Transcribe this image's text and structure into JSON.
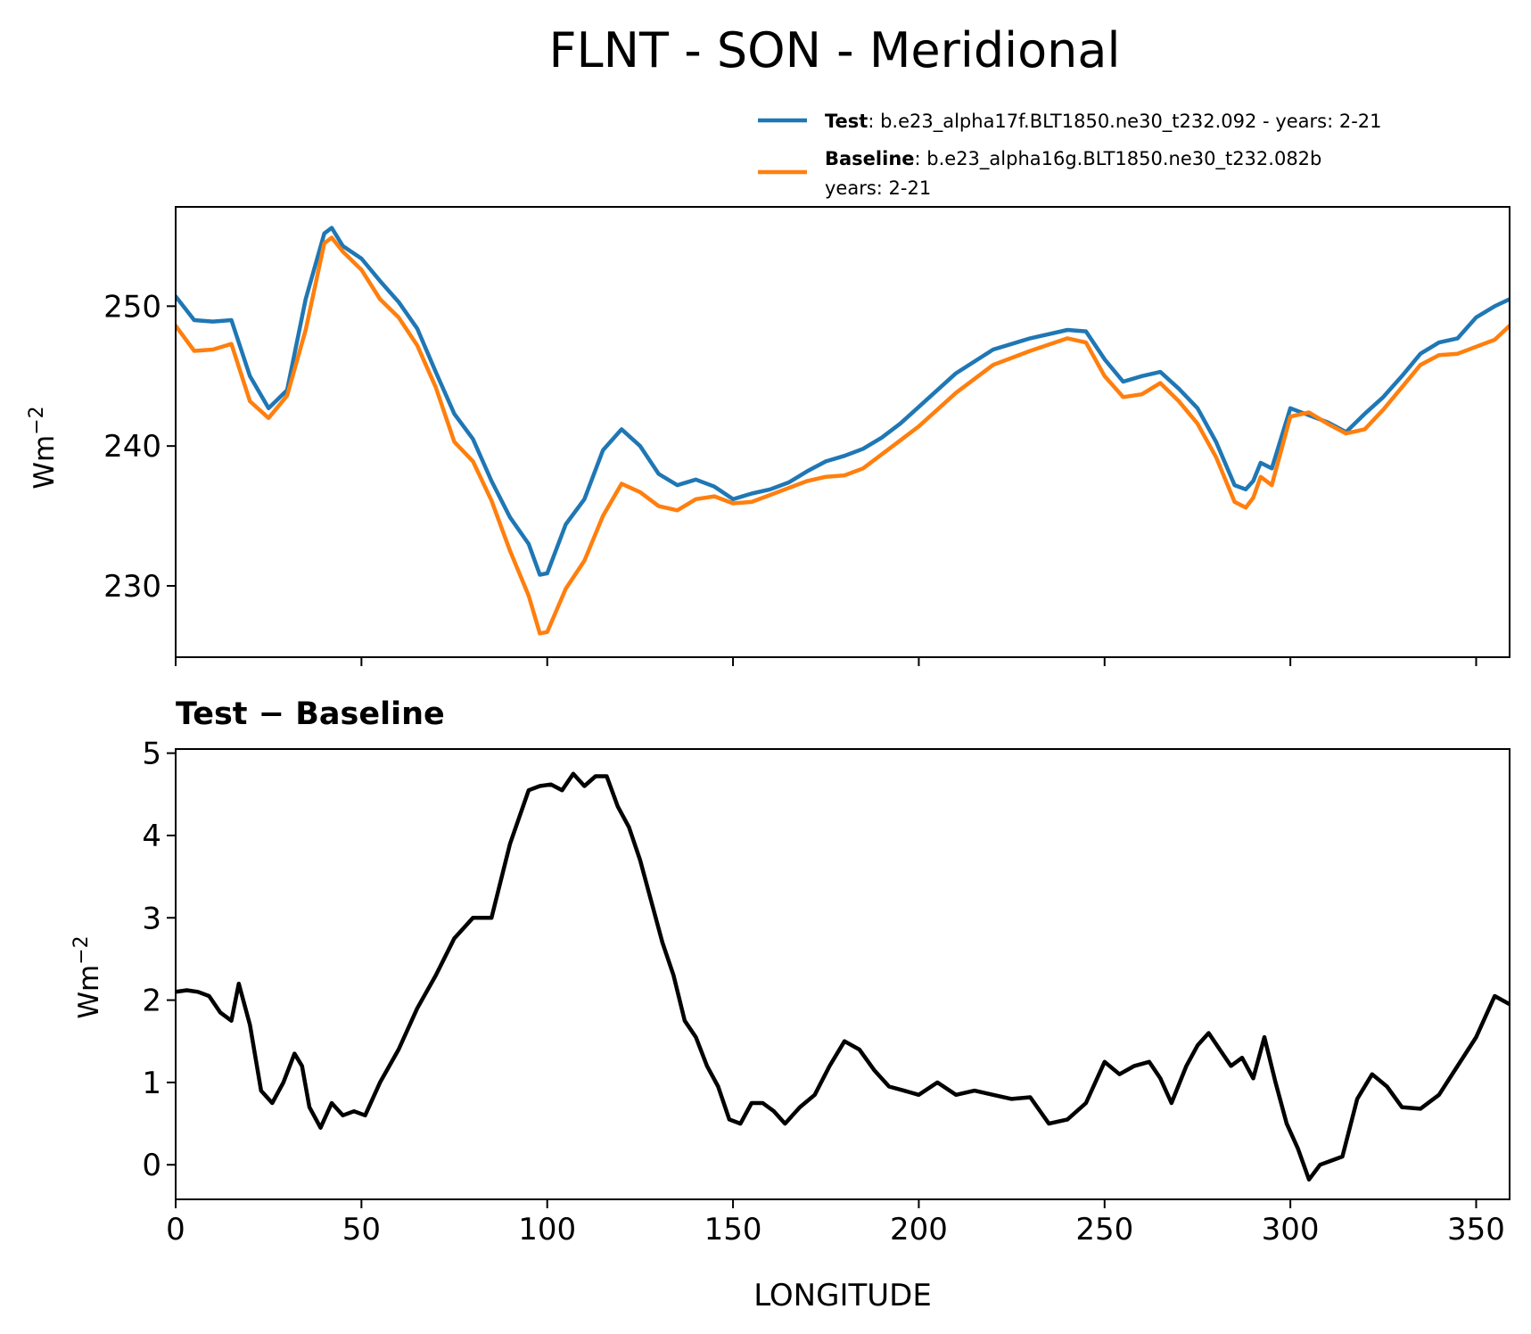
{
  "title": "FLNT - SON - Meridional",
  "colors": {
    "test": "#1f77b4",
    "baseline": "#ff7f0e",
    "diff": "#000000"
  },
  "legend": {
    "test_label": "Test",
    "test_text": ": b.e23_alpha17f.BLT1850.ne30_t232.092 - years: 2-21",
    "baseline_label": "Baseline",
    "baseline_text": ": b.e23_alpha16g.BLT1850.ne30_t232.082b",
    "baseline_text2": "years: 2-21"
  },
  "chart_data": [
    {
      "type": "line",
      "title": "",
      "xlabel": "",
      "ylabel": "Wm",
      "ylabel_sup": "−2",
      "xlim": [
        0,
        359
      ],
      "ylim": [
        224.9,
        257.1
      ],
      "xticks": [
        0,
        50,
        100,
        150,
        200,
        250,
        300,
        350
      ],
      "yticks": [
        230,
        240,
        250
      ],
      "x": [
        0,
        5,
        10,
        15,
        20,
        25,
        30,
        35,
        40,
        42,
        45,
        50,
        55,
        60,
        65,
        70,
        75,
        80,
        85,
        90,
        95,
        98,
        100,
        105,
        110,
        115,
        120,
        125,
        130,
        135,
        140,
        145,
        150,
        155,
        160,
        165,
        170,
        175,
        180,
        185,
        190,
        195,
        200,
        210,
        220,
        230,
        240,
        245,
        250,
        255,
        260,
        265,
        270,
        275,
        280,
        285,
        288,
        290,
        292,
        295,
        300,
        305,
        310,
        315,
        320,
        325,
        330,
        335,
        340,
        345,
        350,
        355,
        359
      ],
      "series": [
        {
          "name": "Test",
          "color_key": "test",
          "values": [
            250.7,
            249.0,
            248.9,
            249.0,
            245.0,
            242.7,
            244.0,
            250.5,
            255.2,
            255.6,
            254.3,
            253.4,
            251.8,
            250.3,
            248.4,
            245.3,
            242.3,
            240.5,
            237.5,
            234.9,
            233.0,
            230.8,
            230.9,
            234.4,
            236.2,
            239.7,
            241.2,
            240.0,
            238.0,
            237.2,
            237.6,
            237.1,
            236.2,
            236.6,
            236.9,
            237.4,
            238.2,
            238.9,
            239.3,
            239.8,
            240.6,
            241.6,
            242.8,
            245.2,
            246.9,
            247.7,
            248.3,
            248.2,
            246.2,
            244.6,
            245.0,
            245.3,
            244.1,
            242.7,
            240.3,
            237.2,
            236.9,
            237.5,
            238.8,
            238.4,
            242.7,
            242.2,
            241.7,
            241.0,
            242.3,
            243.5,
            245.0,
            246.6,
            247.4,
            247.7,
            249.2,
            250.0,
            250.5
          ]
        },
        {
          "name": "Baseline",
          "color_key": "baseline",
          "values": [
            248.6,
            246.8,
            246.9,
            247.3,
            243.2,
            242.0,
            243.6,
            248.3,
            254.5,
            254.9,
            253.9,
            252.6,
            250.5,
            249.2,
            247.2,
            244.2,
            240.3,
            238.9,
            236.1,
            232.5,
            229.3,
            226.6,
            226.7,
            229.8,
            231.8,
            235.0,
            237.3,
            236.7,
            235.7,
            235.4,
            236.2,
            236.4,
            235.9,
            236.0,
            236.5,
            237.0,
            237.5,
            237.8,
            237.9,
            238.4,
            239.4,
            240.4,
            241.4,
            243.8,
            245.8,
            246.8,
            247.7,
            247.4,
            245.0,
            243.5,
            243.7,
            244.5,
            243.2,
            241.6,
            239.2,
            236.0,
            235.6,
            236.3,
            237.8,
            237.2,
            242.1,
            242.4,
            241.6,
            240.9,
            241.2,
            242.6,
            244.2,
            245.8,
            246.5,
            246.6,
            247.1,
            247.6,
            248.6
          ]
        }
      ]
    },
    {
      "type": "line",
      "title": "Test − Baseline",
      "xlabel": "LONGITUDE",
      "ylabel": "Wm",
      "ylabel_sup": "−2",
      "xlim": [
        0,
        359
      ],
      "ylim": [
        -0.42,
        5.05
      ],
      "xticks": [
        0,
        50,
        100,
        150,
        200,
        250,
        300,
        350
      ],
      "yticks": [
        0,
        1,
        2,
        3,
        4,
        5
      ],
      "x": [
        0,
        3,
        6,
        9,
        12,
        15,
        17,
        20,
        23,
        26,
        29,
        32,
        34,
        36,
        39,
        42,
        45,
        48,
        51,
        55,
        60,
        65,
        70,
        75,
        80,
        85,
        90,
        95,
        98,
        101,
        104,
        107,
        110,
        113,
        116,
        119,
        122,
        125,
        128,
        131,
        134,
        137,
        140,
        143,
        146,
        149,
        152,
        155,
        158,
        161,
        164,
        168,
        172,
        176,
        180,
        184,
        188,
        192,
        196,
        200,
        205,
        210,
        215,
        220,
        225,
        230,
        235,
        240,
        245,
        250,
        254,
        258,
        262,
        265,
        268,
        272,
        275,
        278,
        281,
        284,
        287,
        290,
        293,
        296,
        299,
        302,
        305,
        308,
        311,
        314,
        318,
        322,
        326,
        330,
        335,
        340,
        345,
        350,
        355,
        359
      ],
      "series": [
        {
          "name": "Test − Baseline",
          "color_key": "diff",
          "values": [
            2.1,
            2.12,
            2.1,
            2.05,
            1.85,
            1.75,
            2.2,
            1.7,
            0.9,
            0.75,
            1.0,
            1.35,
            1.2,
            0.7,
            0.45,
            0.75,
            0.6,
            0.65,
            0.6,
            1.0,
            1.4,
            1.9,
            2.3,
            2.75,
            3.0,
            3.0,
            3.9,
            4.55,
            4.6,
            4.62,
            4.55,
            4.75,
            4.6,
            4.72,
            4.72,
            4.35,
            4.1,
            3.7,
            3.2,
            2.7,
            2.3,
            1.75,
            1.55,
            1.2,
            0.95,
            0.55,
            0.5,
            0.75,
            0.75,
            0.65,
            0.5,
            0.7,
            0.85,
            1.2,
            1.5,
            1.4,
            1.15,
            0.95,
            0.9,
            0.85,
            1.0,
            0.85,
            0.9,
            0.85,
            0.8,
            0.82,
            0.5,
            0.55,
            0.75,
            1.25,
            1.1,
            1.2,
            1.25,
            1.05,
            0.75,
            1.2,
            1.45,
            1.6,
            1.4,
            1.2,
            1.3,
            1.05,
            1.55,
            1.0,
            0.5,
            0.2,
            -0.18,
            0.0,
            0.05,
            0.1,
            0.8,
            1.1,
            0.95,
            0.7,
            0.68,
            0.85,
            1.2,
            1.55,
            2.05,
            1.95
          ]
        }
      ]
    }
  ]
}
